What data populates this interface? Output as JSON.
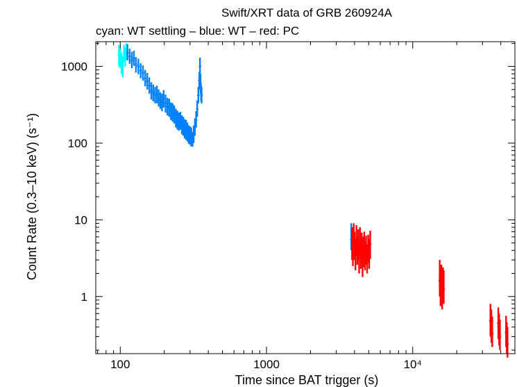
{
  "chart_data": {
    "type": "scatter",
    "title": "Swift/XRT data of GRB 260924A",
    "subtitle": "cyan: WT settling – blue: WT – red: PC",
    "xlabel": "Time since BAT trigger (s)",
    "ylabel": "Count Rate (0.3–10 keV) (s⁻¹)",
    "x_scale": "log",
    "y_scale": "log",
    "xlim": [
      68,
      50000
    ],
    "ylim": [
      0.18,
      2100
    ],
    "x_ticks": [
      {
        "value": 100,
        "label": "100"
      },
      {
        "value": 1000,
        "label": "1000"
      },
      {
        "value": 10000,
        "label": "10⁴"
      }
    ],
    "y_ticks": [
      {
        "value": 1,
        "label": "1"
      },
      {
        "value": 10,
        "label": "10"
      },
      {
        "value": 100,
        "label": "100"
      },
      {
        "value": 1000,
        "label": "1000"
      }
    ],
    "grid": false,
    "colors": {
      "wt_settling": "#00ffff",
      "wt": "#0080ff",
      "pc": "#ff0000"
    },
    "series": [
      {
        "key": "wt_settling",
        "points": [
          [
            98,
            1400,
            1000,
            1900
          ],
          [
            100,
            1250,
            950,
            1700
          ],
          [
            102,
            1100,
            800,
            1500
          ],
          [
            104,
            1000,
            720,
            1350
          ],
          [
            106,
            1500,
            1150,
            1900
          ],
          [
            108,
            1300,
            1000,
            1750
          ],
          [
            110,
            1550,
            1200,
            2000
          ]
        ]
      },
      {
        "key": "wt",
        "points": [
          [
            112,
            1500,
            1200,
            1950
          ],
          [
            116,
            1350,
            1080,
            1700
          ],
          [
            120,
            1200,
            950,
            1550
          ],
          [
            124,
            1280,
            1020,
            1600
          ],
          [
            128,
            1050,
            830,
            1320
          ],
          [
            133,
            1000,
            790,
            1260
          ],
          [
            138,
            880,
            700,
            1100
          ],
          [
            143,
            820,
            650,
            1030
          ],
          [
            148,
            700,
            550,
            900
          ],
          [
            153,
            640,
            500,
            820
          ],
          [
            158,
            560,
            440,
            720
          ],
          [
            163,
            480,
            370,
            620
          ],
          [
            168,
            450,
            350,
            580
          ],
          [
            173,
            420,
            330,
            540
          ],
          [
            178,
            430,
            330,
            560
          ],
          [
            183,
            390,
            300,
            500
          ],
          [
            188,
            360,
            280,
            460
          ],
          [
            193,
            340,
            260,
            440
          ],
          [
            198,
            380,
            290,
            490
          ],
          [
            204,
            330,
            250,
            430
          ],
          [
            210,
            300,
            230,
            390
          ],
          [
            216,
            290,
            220,
            380
          ],
          [
            222,
            260,
            200,
            340
          ],
          [
            228,
            250,
            190,
            330
          ],
          [
            234,
            240,
            180,
            310
          ],
          [
            240,
            210,
            160,
            280
          ],
          [
            246,
            200,
            150,
            265
          ],
          [
            252,
            190,
            145,
            250
          ],
          [
            258,
            195,
            150,
            255
          ],
          [
            264,
            175,
            130,
            230
          ],
          [
            270,
            165,
            125,
            220
          ],
          [
            276,
            155,
            115,
            205
          ],
          [
            282,
            150,
            110,
            200
          ],
          [
            288,
            140,
            105,
            185
          ],
          [
            294,
            130,
            98,
            170
          ],
          [
            300,
            125,
            95,
            165
          ],
          [
            306,
            120,
            90,
            160
          ],
          [
            312,
            110,
            90,
            140
          ],
          [
            318,
            130,
            100,
            170
          ],
          [
            324,
            160,
            125,
            210
          ],
          [
            330,
            200,
            160,
            260
          ],
          [
            336,
            280,
            220,
            360
          ],
          [
            342,
            420,
            330,
            540
          ],
          [
            347,
            650,
            500,
            850
          ],
          [
            351,
            1000,
            780,
            1300
          ],
          [
            354,
            600,
            450,
            800
          ],
          [
            357,
            450,
            350,
            580
          ],
          [
            360,
            420,
            330,
            540
          ],
          [
            3800,
            5.5,
            4.0,
            9.0
          ]
        ]
      },
      {
        "key": "pc",
        "points": [
          [
            3850,
            5.0,
            3.0,
            8.0
          ],
          [
            3900,
            3.8,
            2.5,
            6.0
          ],
          [
            3950,
            6.0,
            4.0,
            9.0
          ],
          [
            4000,
            4.5,
            3.0,
            7.0
          ],
          [
            4060,
            3.5,
            2.2,
            5.5
          ],
          [
            4120,
            5.5,
            3.5,
            8.5
          ],
          [
            4180,
            4.0,
            2.6,
            6.2
          ],
          [
            4240,
            4.8,
            3.0,
            7.5
          ],
          [
            4300,
            3.2,
            2.0,
            5.0
          ],
          [
            4360,
            5.2,
            3.4,
            8.0
          ],
          [
            4420,
            3.6,
            2.3,
            5.6
          ],
          [
            4480,
            4.4,
            2.8,
            6.8
          ],
          [
            4540,
            2.8,
            1.8,
            4.4
          ],
          [
            4600,
            3.8,
            2.4,
            6.0
          ],
          [
            4660,
            4.6,
            3.0,
            7.0
          ],
          [
            4720,
            3.4,
            2.2,
            5.2
          ],
          [
            4800,
            4.0,
            2.6,
            6.2
          ],
          [
            4880,
            3.0,
            2.0,
            4.8
          ],
          [
            4960,
            4.2,
            2.7,
            6.4
          ],
          [
            5040,
            3.6,
            2.3,
            5.6
          ],
          [
            5120,
            4.8,
            3.1,
            7.2
          ],
          [
            15300,
            1.6,
            1.0,
            3.0
          ],
          [
            15500,
            1.2,
            0.75,
            2.2
          ],
          [
            15700,
            1.5,
            0.9,
            2.6
          ],
          [
            15900,
            1.1,
            0.68,
            1.9
          ],
          [
            16100,
            1.4,
            0.85,
            2.4
          ],
          [
            16300,
            1.25,
            0.8,
            2.2
          ],
          [
            34000,
            0.48,
            0.3,
            0.8
          ],
          [
            34500,
            0.4,
            0.25,
            0.68
          ],
          [
            35000,
            0.33,
            0.22,
            0.55
          ],
          [
            38500,
            0.45,
            0.28,
            0.72
          ],
          [
            39000,
            0.36,
            0.23,
            0.6
          ],
          [
            39500,
            0.3,
            0.2,
            0.5
          ],
          [
            43500,
            0.34,
            0.22,
            0.56
          ],
          [
            44000,
            0.28,
            0.18,
            0.46
          ],
          [
            44500,
            0.24,
            0.16,
            0.4
          ]
        ]
      }
    ]
  }
}
